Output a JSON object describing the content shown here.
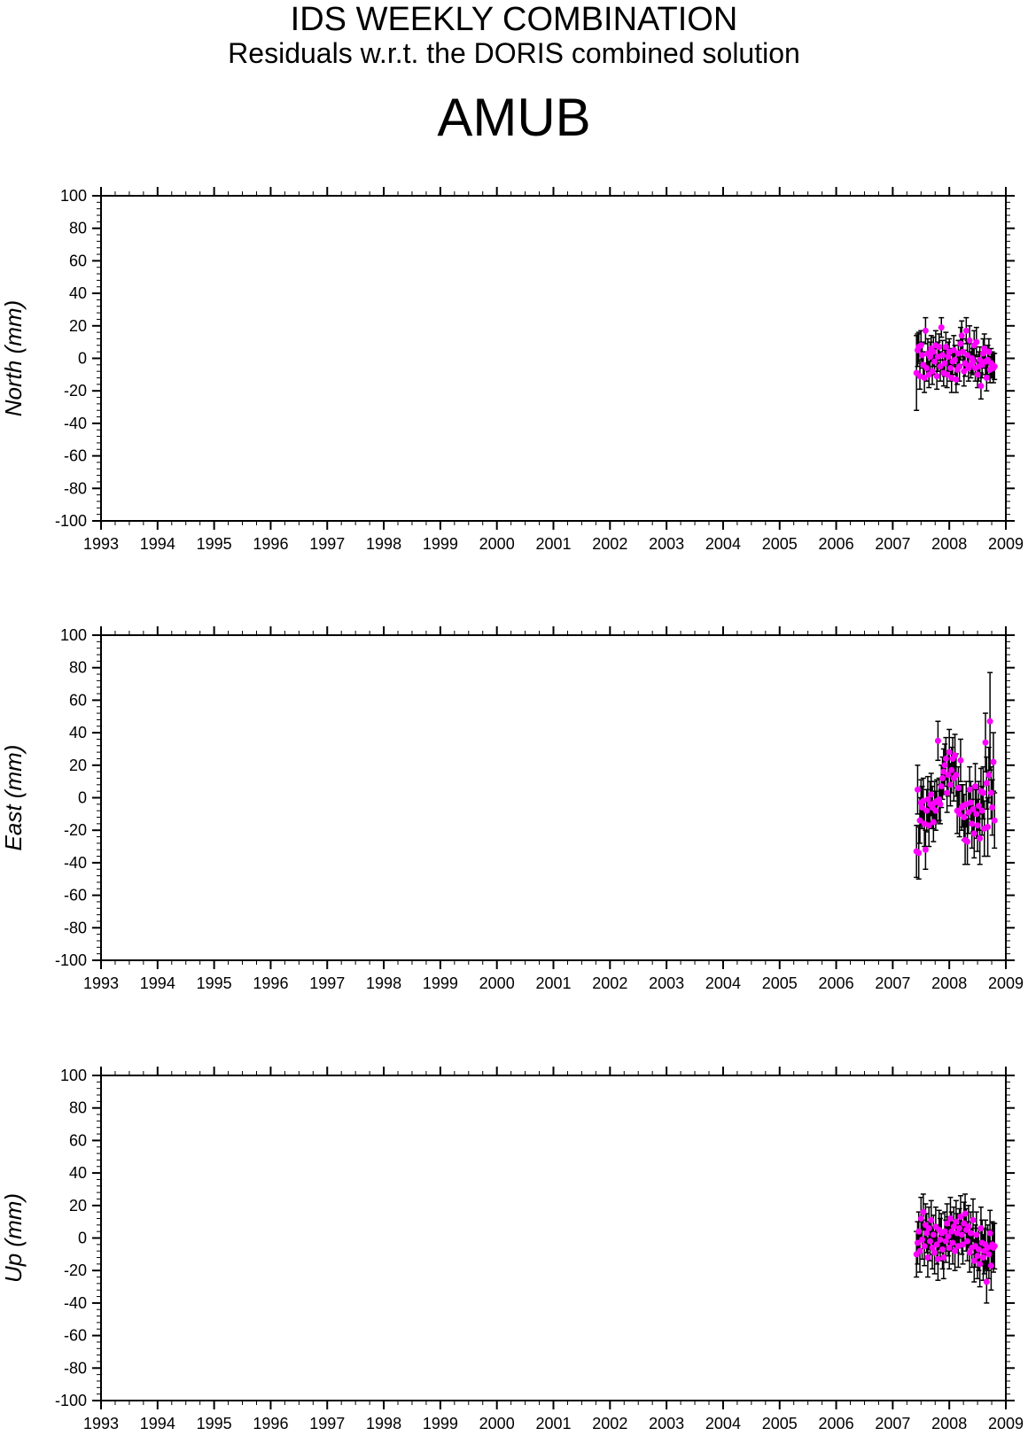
{
  "header": {
    "title": "IDS WEEKLY COMBINATION",
    "subtitle": "Residuals w.r.t. the DORIS combined solution",
    "station": "AMUB"
  },
  "chart_data": [
    {
      "type": "scatter",
      "ylabel": "North (mm)",
      "xlim": [
        1993,
        2009
      ],
      "ylim": [
        -100,
        100
      ],
      "x_ticks": [
        "1993",
        "1994",
        "1995",
        "1996",
        "1997",
        "1998",
        "1999",
        "2000",
        "2001",
        "2002",
        "2003",
        "2004",
        "2005",
        "2006",
        "2007",
        "2008",
        "2009"
      ],
      "y_ticks": [
        "100",
        "80",
        "60",
        "40",
        "20",
        "0",
        "-20",
        "-40",
        "-60",
        "-80",
        "-100"
      ],
      "point_color": "#ff00ff",
      "errorbar_color": "#000000",
      "x": [
        2007.42,
        2007.44,
        2007.46,
        2007.48,
        2007.5,
        2007.52,
        2007.54,
        2007.56,
        2007.58,
        2007.6,
        2007.62,
        2007.64,
        2007.66,
        2007.68,
        2007.7,
        2007.72,
        2007.74,
        2007.76,
        2007.78,
        2007.8,
        2007.82,
        2007.84,
        2007.86,
        2007.88,
        2007.9,
        2007.92,
        2007.94,
        2007.96,
        2007.98,
        2008.0,
        2008.02,
        2008.04,
        2008.06,
        2008.08,
        2008.1,
        2008.12,
        2008.14,
        2008.16,
        2008.18,
        2008.2,
        2008.22,
        2008.24,
        2008.26,
        2008.28,
        2008.3,
        2008.32,
        2008.34,
        2008.36,
        2008.38,
        2008.4,
        2008.42,
        2008.44,
        2008.46,
        2008.48,
        2008.5,
        2008.52,
        2008.54,
        2008.56,
        2008.58,
        2008.6,
        2008.62,
        2008.64,
        2008.66,
        2008.68,
        2008.7,
        2008.72,
        2008.74,
        2008.76,
        2008.78,
        2008.8
      ],
      "y": [
        -9,
        5,
        7,
        -11,
        8,
        2,
        -4,
        -12,
        17,
        -6,
        3,
        -10,
        1,
        6,
        -8,
        4,
        -2,
        8,
        -11,
        1,
        7,
        -5,
        19,
        2,
        -9,
        -3,
        7,
        -10,
        1,
        4,
        -6,
        -12,
        -2,
        5,
        -1,
        -13,
        -7,
        3,
        -5,
        9,
        14,
        4,
        -8,
        -3,
        17,
        2,
        -6,
        11,
        -4,
        0,
        -2,
        8,
        -6,
        10,
        -10,
        -5,
        -1,
        -17,
        -4,
        3,
        6,
        -2,
        -12,
        -1,
        4,
        -7,
        -3,
        -4,
        -6,
        -5
      ],
      "err": [
        23,
        10,
        9,
        8,
        9,
        8,
        8,
        9,
        8,
        8,
        9,
        8,
        9,
        8,
        8,
        9,
        8,
        9,
        8,
        9,
        8,
        9,
        6,
        9,
        8,
        8,
        9,
        8,
        9,
        8,
        8,
        9,
        8,
        9,
        9,
        8,
        9,
        8,
        9,
        10,
        9,
        8,
        9,
        8,
        8,
        9,
        8,
        9,
        8,
        9,
        8,
        9,
        8,
        9,
        8,
        9,
        8,
        8,
        8,
        9,
        9,
        8,
        8,
        9,
        8,
        8,
        9,
        8,
        9,
        8
      ],
      "lower_err": [
        23,
        10,
        9,
        8,
        9,
        8,
        8,
        9,
        8,
        8,
        9,
        8,
        9,
        8,
        8,
        9,
        8,
        9,
        8,
        9,
        8,
        9,
        6,
        9,
        8,
        8,
        9,
        8,
        9,
        8,
        8,
        9,
        8,
        9,
        9,
        8,
        9,
        8,
        9,
        10,
        9,
        8,
        9,
        8,
        8,
        9,
        8,
        9,
        8,
        9,
        8,
        9,
        8,
        9,
        8,
        9,
        8,
        8,
        8,
        9,
        9,
        8,
        8,
        9,
        8,
        8,
        9,
        8,
        9,
        8
      ]
    },
    {
      "type": "scatter",
      "ylabel": "East (mm)",
      "xlim": [
        1993,
        2009
      ],
      "ylim": [
        -100,
        100
      ],
      "x_ticks": [
        "1993",
        "1994",
        "1995",
        "1996",
        "1997",
        "1998",
        "1999",
        "2000",
        "2001",
        "2002",
        "2003",
        "2004",
        "2005",
        "2006",
        "2007",
        "2008",
        "2009"
      ],
      "y_ticks": [
        "100",
        "80",
        "60",
        "40",
        "20",
        "0",
        "-20",
        "-40",
        "-60",
        "-80",
        "-100"
      ],
      "point_color": "#ff00ff",
      "errorbar_color": "#000000",
      "x": [
        2007.42,
        2007.44,
        2007.46,
        2007.48,
        2007.5,
        2007.52,
        2007.54,
        2007.56,
        2007.58,
        2007.6,
        2007.62,
        2007.64,
        2007.66,
        2007.68,
        2007.7,
        2007.72,
        2007.74,
        2007.76,
        2007.78,
        2007.8,
        2007.82,
        2007.84,
        2007.86,
        2007.88,
        2007.9,
        2007.92,
        2007.94,
        2007.96,
        2007.98,
        2008.0,
        2008.02,
        2008.04,
        2008.06,
        2008.08,
        2008.1,
        2008.12,
        2008.14,
        2008.16,
        2008.18,
        2008.2,
        2008.22,
        2008.24,
        2008.26,
        2008.28,
        2008.3,
        2008.32,
        2008.34,
        2008.36,
        2008.38,
        2008.4,
        2008.42,
        2008.44,
        2008.46,
        2008.48,
        2008.5,
        2008.52,
        2008.54,
        2008.56,
        2008.58,
        2008.6,
        2008.62,
        2008.64,
        2008.66,
        2008.68,
        2008.7,
        2008.72,
        2008.74,
        2008.76,
        2008.78,
        2008.8
      ],
      "y": [
        -33,
        5,
        -34,
        -14,
        -3,
        -6,
        -2,
        -16,
        -32,
        -8,
        -1,
        -17,
        -4,
        2,
        -6,
        -15,
        -3,
        -8,
        -2,
        35,
        -1,
        -4,
        7,
        12,
        16,
        20,
        24,
        3,
        14,
        28,
        8,
        17,
        24,
        12,
        26,
        14,
        -8,
        6,
        -10,
        23,
        -6,
        -5,
        -12,
        -26,
        -4,
        -27,
        -9,
        5,
        -3,
        -16,
        -7,
        -22,
        7,
        -10,
        -17,
        -5,
        -25,
        4,
        -8,
        3,
        -19,
        34,
        9,
        -18,
        14,
        47,
        3,
        -6,
        22,
        -14
      ],
      "err": [
        16,
        15,
        16,
        14,
        14,
        13,
        14,
        14,
        12,
        13,
        14,
        13,
        14,
        13,
        13,
        12,
        13,
        12,
        13,
        12,
        13,
        12,
        13,
        13,
        14,
        13,
        13,
        12,
        13,
        14,
        13,
        14,
        13,
        14,
        13,
        13,
        14,
        13,
        14,
        13,
        14,
        13,
        14,
        15,
        14,
        14,
        13,
        14,
        13,
        15,
        14,
        15,
        14,
        15,
        16,
        15,
        16,
        14,
        15,
        16,
        17,
        18,
        16,
        18,
        17,
        30,
        16,
        17,
        18,
        17
      ],
      "lower_err": [
        16,
        15,
        16,
        14,
        14,
        13,
        14,
        14,
        12,
        13,
        14,
        13,
        14,
        13,
        13,
        12,
        13,
        12,
        13,
        12,
        13,
        12,
        13,
        13,
        14,
        13,
        13,
        12,
        13,
        14,
        13,
        14,
        13,
        14,
        13,
        13,
        14,
        13,
        14,
        13,
        14,
        13,
        14,
        15,
        14,
        14,
        13,
        14,
        13,
        15,
        14,
        15,
        14,
        15,
        16,
        15,
        16,
        14,
        15,
        16,
        17,
        18,
        16,
        18,
        17,
        30,
        16,
        17,
        18,
        17
      ]
    },
    {
      "type": "scatter",
      "ylabel": "Up (mm)",
      "xlim": [
        1993,
        2009
      ],
      "ylim": [
        -100,
        100
      ],
      "x_ticks": [
        "1993",
        "1994",
        "1995",
        "1996",
        "1997",
        "1998",
        "1999",
        "2000",
        "2001",
        "2002",
        "2003",
        "2004",
        "2005",
        "2006",
        "2007",
        "2008",
        "2009"
      ],
      "y_ticks": [
        "100",
        "80",
        "60",
        "40",
        "20",
        "0",
        "-20",
        "-40",
        "-60",
        "-80",
        "-100"
      ],
      "point_color": "#ff00ff",
      "errorbar_color": "#000000",
      "x": [
        2007.42,
        2007.44,
        2007.46,
        2007.48,
        2007.5,
        2007.52,
        2007.54,
        2007.56,
        2007.58,
        2007.6,
        2007.62,
        2007.64,
        2007.66,
        2007.68,
        2007.7,
        2007.72,
        2007.74,
        2007.76,
        2007.78,
        2007.8,
        2007.82,
        2007.84,
        2007.86,
        2007.88,
        2007.9,
        2007.92,
        2007.94,
        2007.96,
        2007.98,
        2008.0,
        2008.02,
        2008.04,
        2008.06,
        2008.08,
        2008.1,
        2008.12,
        2008.14,
        2008.16,
        2008.18,
        2008.2,
        2008.22,
        2008.24,
        2008.26,
        2008.28,
        2008.3,
        2008.32,
        2008.34,
        2008.36,
        2008.38,
        2008.4,
        2008.42,
        2008.44,
        2008.46,
        2008.48,
        2008.5,
        2008.52,
        2008.54,
        2008.56,
        2008.58,
        2008.6,
        2008.62,
        2008.64,
        2008.66,
        2008.68,
        2008.7,
        2008.72,
        2008.74,
        2008.76,
        2008.78,
        2008.8
      ],
      "y": [
        -10,
        -3,
        4,
        -8,
        12,
        -1,
        16,
        -5,
        8,
        3,
        -12,
        6,
        -2,
        11,
        -6,
        2,
        -9,
        7,
        -4,
        -13,
        5,
        -1,
        3,
        -7,
        -12,
        4,
        -2,
        9,
        1,
        -6,
        12,
        4,
        -3,
        7,
        -8,
        10,
        3,
        -5,
        6,
        13,
        2,
        -4,
        9,
        15,
        5,
        -2,
        7,
        -9,
        3,
        -6,
        11,
        -14,
        -5,
        2,
        -11,
        -7,
        -16,
        6,
        -3,
        -12,
        -8,
        -4,
        -27,
        -6,
        -10,
        3,
        -17,
        -4,
        -6,
        -5
      ],
      "err": [
        14,
        13,
        12,
        13,
        13,
        12,
        11,
        12,
        13,
        12,
        12,
        13,
        12,
        12,
        13,
        12,
        13,
        12,
        12,
        13,
        12,
        13,
        12,
        12,
        13,
        12,
        13,
        12,
        12,
        13,
        13,
        12,
        13,
        12,
        12,
        13,
        12,
        13,
        12,
        13,
        12,
        12,
        13,
        12,
        13,
        12,
        13,
        12,
        13,
        12,
        13,
        13,
        13,
        14,
        14,
        13,
        14,
        13,
        14,
        14,
        14,
        15,
        13,
        14,
        15,
        14,
        15,
        14,
        15,
        14
      ],
      "lower_err": [
        14,
        13,
        12,
        13,
        13,
        12,
        11,
        12,
        13,
        12,
        12,
        13,
        12,
        12,
        13,
        12,
        13,
        12,
        12,
        13,
        12,
        13,
        12,
        12,
        13,
        12,
        13,
        12,
        12,
        13,
        13,
        12,
        13,
        12,
        12,
        13,
        12,
        13,
        12,
        13,
        12,
        12,
        13,
        12,
        13,
        12,
        13,
        12,
        13,
        12,
        13,
        13,
        13,
        14,
        14,
        13,
        14,
        13,
        14,
        14,
        14,
        15,
        13,
        14,
        15,
        14,
        15,
        14,
        15,
        14
      ]
    }
  ]
}
